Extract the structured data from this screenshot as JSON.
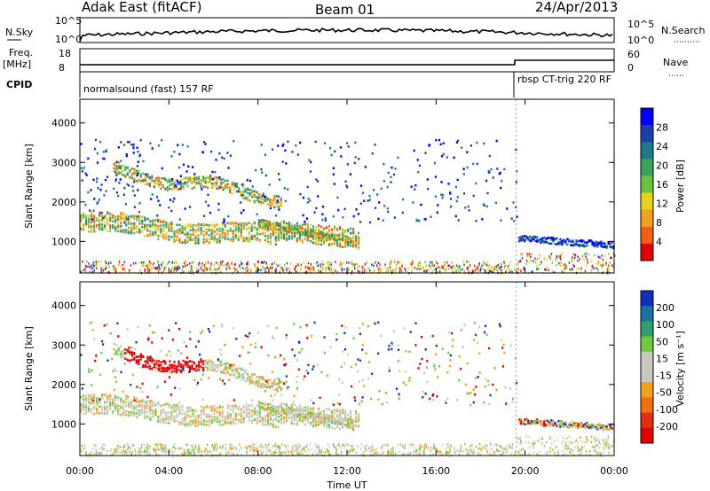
{
  "header": {
    "station": "Adak East (fitACF)",
    "beam": "Beam 01",
    "date": "24/Apr/2013"
  },
  "top_panels": {
    "nsky_label": "N.Sky",
    "nsky_ticks": [
      "10^5",
      "10^0"
    ],
    "nsearch_label": "N.Search",
    "nsearch_ticks": [
      "10^5",
      "10^0"
    ],
    "freq_label": "Freq.",
    "freq_unit": "[MHz]",
    "freq_ticks": [
      "18",
      "8"
    ],
    "nave_label": "Nave",
    "nave_ticks": [
      "60",
      "0"
    ],
    "cpid_label": "CPID",
    "cpid_segments": [
      {
        "label": "normalsound (fast) 157 RF",
        "start_hour": 0
      },
      {
        "label": "rbsp CT-trig 220 RF",
        "start_hour": 19.6
      }
    ]
  },
  "time_axis": {
    "label": "Time UT",
    "ticks": [
      "00:00",
      "04:00",
      "08:00",
      "12:00",
      "16:00",
      "20:00",
      "00:00"
    ],
    "tick_hours": [
      0,
      4,
      8,
      12,
      16,
      20,
      24
    ]
  },
  "chart_data": [
    {
      "type": "heatmap",
      "title": "Power",
      "xlabel": "Time UT",
      "ylabel": "Slant Range [km]",
      "xlim": [
        0,
        24
      ],
      "ylim": [
        200,
        4600
      ],
      "yticks": [
        "1000",
        "2000",
        "3000",
        "4000"
      ],
      "ytick_values": [
        1000,
        2000,
        3000,
        4000
      ],
      "colorbar": {
        "label": "Power [dB]",
        "ticks": [
          "28",
          "24",
          "20",
          "16",
          "12",
          "8",
          "4"
        ],
        "tick_values": [
          28,
          24,
          20,
          16,
          12,
          8,
          4
        ],
        "range": [
          0,
          32
        ],
        "colors": [
          "#0000ff",
          "#1f3fa8",
          "#1e7a8a",
          "#3ca060",
          "#6cc040",
          "#e8d020",
          "#f0a020",
          "#f06010",
          "#e00000"
        ]
      }
    },
    {
      "type": "heatmap",
      "title": "Velocity",
      "xlabel": "Time UT",
      "ylabel": "Slant Range [km]",
      "xlim": [
        0,
        24
      ],
      "ylim": [
        200,
        4600
      ],
      "yticks": [
        "1000",
        "2000",
        "3000",
        "4000"
      ],
      "ytick_values": [
        1000,
        2000,
        3000,
        4000
      ],
      "colorbar": {
        "label": "Velocity [m s⁻¹]",
        "ticks": [
          "200",
          "100",
          "50",
          "15",
          "-15",
          "-50",
          "-100",
          "-200"
        ],
        "tick_values": [
          200,
          100,
          50,
          15,
          -15,
          -50,
          -100,
          -200
        ],
        "colors": [
          "#1030c0",
          "#2070a0",
          "#30a070",
          "#70c840",
          "#c8c8c0",
          "#c8c8c0",
          "#f0a020",
          "#f07010",
          "#e03010",
          "#e00000"
        ]
      }
    }
  ]
}
